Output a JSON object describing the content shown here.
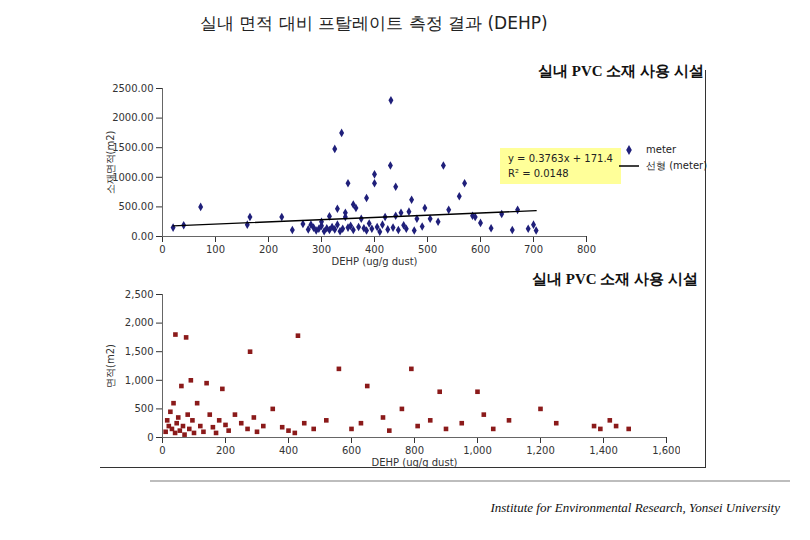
{
  "title": "실내 면적 대비 프탈레이트 측정 결과 (DEHP)",
  "footer": "Institute for Environmental Research, Yonsei University",
  "chart_data": [
    {
      "type": "scatter",
      "title": "실내 PVC 소재 사용 시설",
      "x_label": "DEHP (ug/g dust)",
      "y_label": "소재면적(m2)",
      "xlim": [
        0,
        800
      ],
      "xticks": [
        0,
        100,
        200,
        300,
        400,
        500,
        600,
        700,
        800
      ],
      "ylim": [
        0,
        2500
      ],
      "yticks": [
        {
          "value": 0,
          "label": "0.00"
        },
        {
          "value": 500,
          "label": "500.00"
        },
        {
          "value": 1000,
          "label": "1000.00"
        },
        {
          "value": 1500,
          "label": "1500.00"
        },
        {
          "value": 2000,
          "label": "2000.00"
        },
        {
          "value": 2500,
          "label": "2500.00"
        }
      ],
      "legend": "right",
      "series": [
        {
          "name": "meter",
          "color": "#1f1f7a",
          "marker": "diamond",
          "x": [
            20,
            40,
            72,
            160,
            165,
            225,
            245,
            265,
            275,
            280,
            285,
            290,
            295,
            300,
            300,
            305,
            310,
            315,
            315,
            320,
            325,
            325,
            330,
            330,
            335,
            338,
            340,
            345,
            345,
            350,
            350,
            355,
            360,
            360,
            365,
            370,
            375,
            380,
            385,
            385,
            390,
            395,
            400,
            400,
            405,
            410,
            415,
            420,
            425,
            430,
            431,
            435,
            440,
            440,
            445,
            450,
            455,
            460,
            465,
            470,
            475,
            480,
            490,
            495,
            505,
            520,
            530,
            540,
            560,
            570,
            585,
            590,
            600,
            620,
            640,
            660,
            670,
            690,
            700,
            705
          ],
          "values": [
            150,
            190,
            500,
            200,
            330,
            330,
            110,
            210,
            120,
            200,
            150,
            100,
            130,
            180,
            250,
            90,
            140,
            110,
            340,
            160,
            120,
            1480,
            200,
            470,
            90,
            1750,
            130,
            330,
            400,
            150,
            900,
            180,
            110,
            540,
            480,
            160,
            300,
            140,
            100,
            650,
            220,
            130,
            900,
            1050,
            160,
            80,
            200,
            330,
            120,
            1200,
            2300,
            150,
            350,
            840,
            110,
            400,
            190,
            130,
            420,
            620,
            100,
            300,
            170,
            480,
            300,
            250,
            1200,
            450,
            680,
            900,
            350,
            330,
            230,
            140,
            380,
            110,
            450,
            130,
            200,
            100
          ]
        },
        {
          "name": "선형 (meter)",
          "type": "line",
          "color": "#000000",
          "line_style": "solid",
          "slope": 0.3763,
          "intercept": 171.4,
          "annotation": [
            "y = 0.3763x + 171.4",
            "R² = 0.0148"
          ]
        }
      ]
    },
    {
      "type": "scatter",
      "title": "실내 PVC 소재 사용 시설",
      "x_label": "DEHP (ug/g dust)",
      "y_label": "면적(m2)",
      "xlim": [
        0,
        1600
      ],
      "xticks": [
        0,
        200,
        400,
        600,
        800,
        {
          "value": 1000,
          "label": "1,000"
        },
        {
          "value": 1200,
          "label": "1,200"
        },
        {
          "value": 1400,
          "label": "1,400"
        },
        {
          "value": 1600,
          "label": "1,600"
        }
      ],
      "ylim": [
        0,
        2500
      ],
      "yticks": [
        0,
        500,
        {
          "value": 1000,
          "label": "1,000"
        },
        {
          "value": 1500,
          "label": "1,500"
        },
        {
          "value": 2000,
          "label": "2,000"
        },
        {
          "value": 2500,
          "label": "2,500"
        }
      ],
      "series": [
        {
          "color": "#8b1a1a",
          "marker": "square",
          "x": [
            10,
            15,
            20,
            25,
            30,
            35,
            40,
            41,
            45,
            50,
            55,
            60,
            65,
            70,
            75,
            80,
            85,
            90,
            95,
            100,
            110,
            120,
            130,
            140,
            150,
            160,
            170,
            180,
            190,
            200,
            210,
            230,
            250,
            270,
            278,
            290,
            300,
            320,
            350,
            380,
            400,
            420,
            430,
            450,
            480,
            520,
            560,
            600,
            630,
            650,
            700,
            720,
            760,
            790,
            810,
            850,
            880,
            900,
            950,
            1000,
            1020,
            1050,
            1100,
            1200,
            1250,
            1370,
            1390,
            1420,
            1440,
            1480
          ],
          "values": [
            100,
            300,
            200,
            450,
            150,
            600,
            80,
            1800,
            250,
            350,
            120,
            900,
            200,
            50,
            1750,
            400,
            150,
            1000,
            300,
            80,
            600,
            200,
            100,
            950,
            400,
            180,
            80,
            300,
            850,
            220,
            120,
            400,
            250,
            150,
            1500,
            350,
            100,
            200,
            500,
            180,
            120,
            80,
            1780,
            250,
            150,
            300,
            1200,
            150,
            250,
            900,
            350,
            120,
            500,
            1200,
            200,
            300,
            800,
            150,
            250,
            800,
            400,
            150,
            300,
            500,
            250,
            200,
            150,
            300,
            200,
            150
          ]
        }
      ]
    }
  ]
}
